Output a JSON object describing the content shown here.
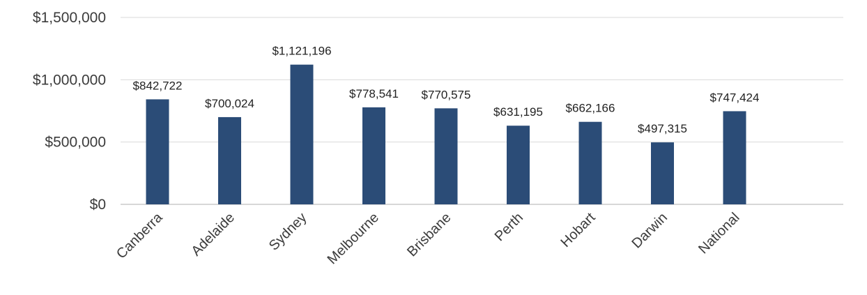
{
  "chart_data": {
    "type": "bar",
    "categories": [
      "Canberra",
      "Adelaide",
      "Sydney",
      "Melbourne",
      "Brisbane",
      "Perth",
      "Hobart",
      "Darwin",
      "National"
    ],
    "values": [
      842722,
      700024,
      1121196,
      778541,
      770575,
      631195,
      662166,
      497315,
      747424
    ],
    "data_labels": [
      "$842,722",
      "$700,024",
      "$1,121,196",
      "$778,541",
      "$770,575",
      "$631,195",
      "$662,166",
      "$497,315",
      "$747,424"
    ],
    "y_ticks": [
      0,
      500000,
      1000000,
      1500000
    ],
    "y_tick_labels": [
      "$0",
      "$500,000",
      "$1,000,000",
      "$1,500,000"
    ],
    "ylim": [
      0,
      1500000
    ],
    "grid": true,
    "legend": "none",
    "bar_color": "#2b4c77",
    "title": "",
    "xlabel": "",
    "ylabel": ""
  }
}
